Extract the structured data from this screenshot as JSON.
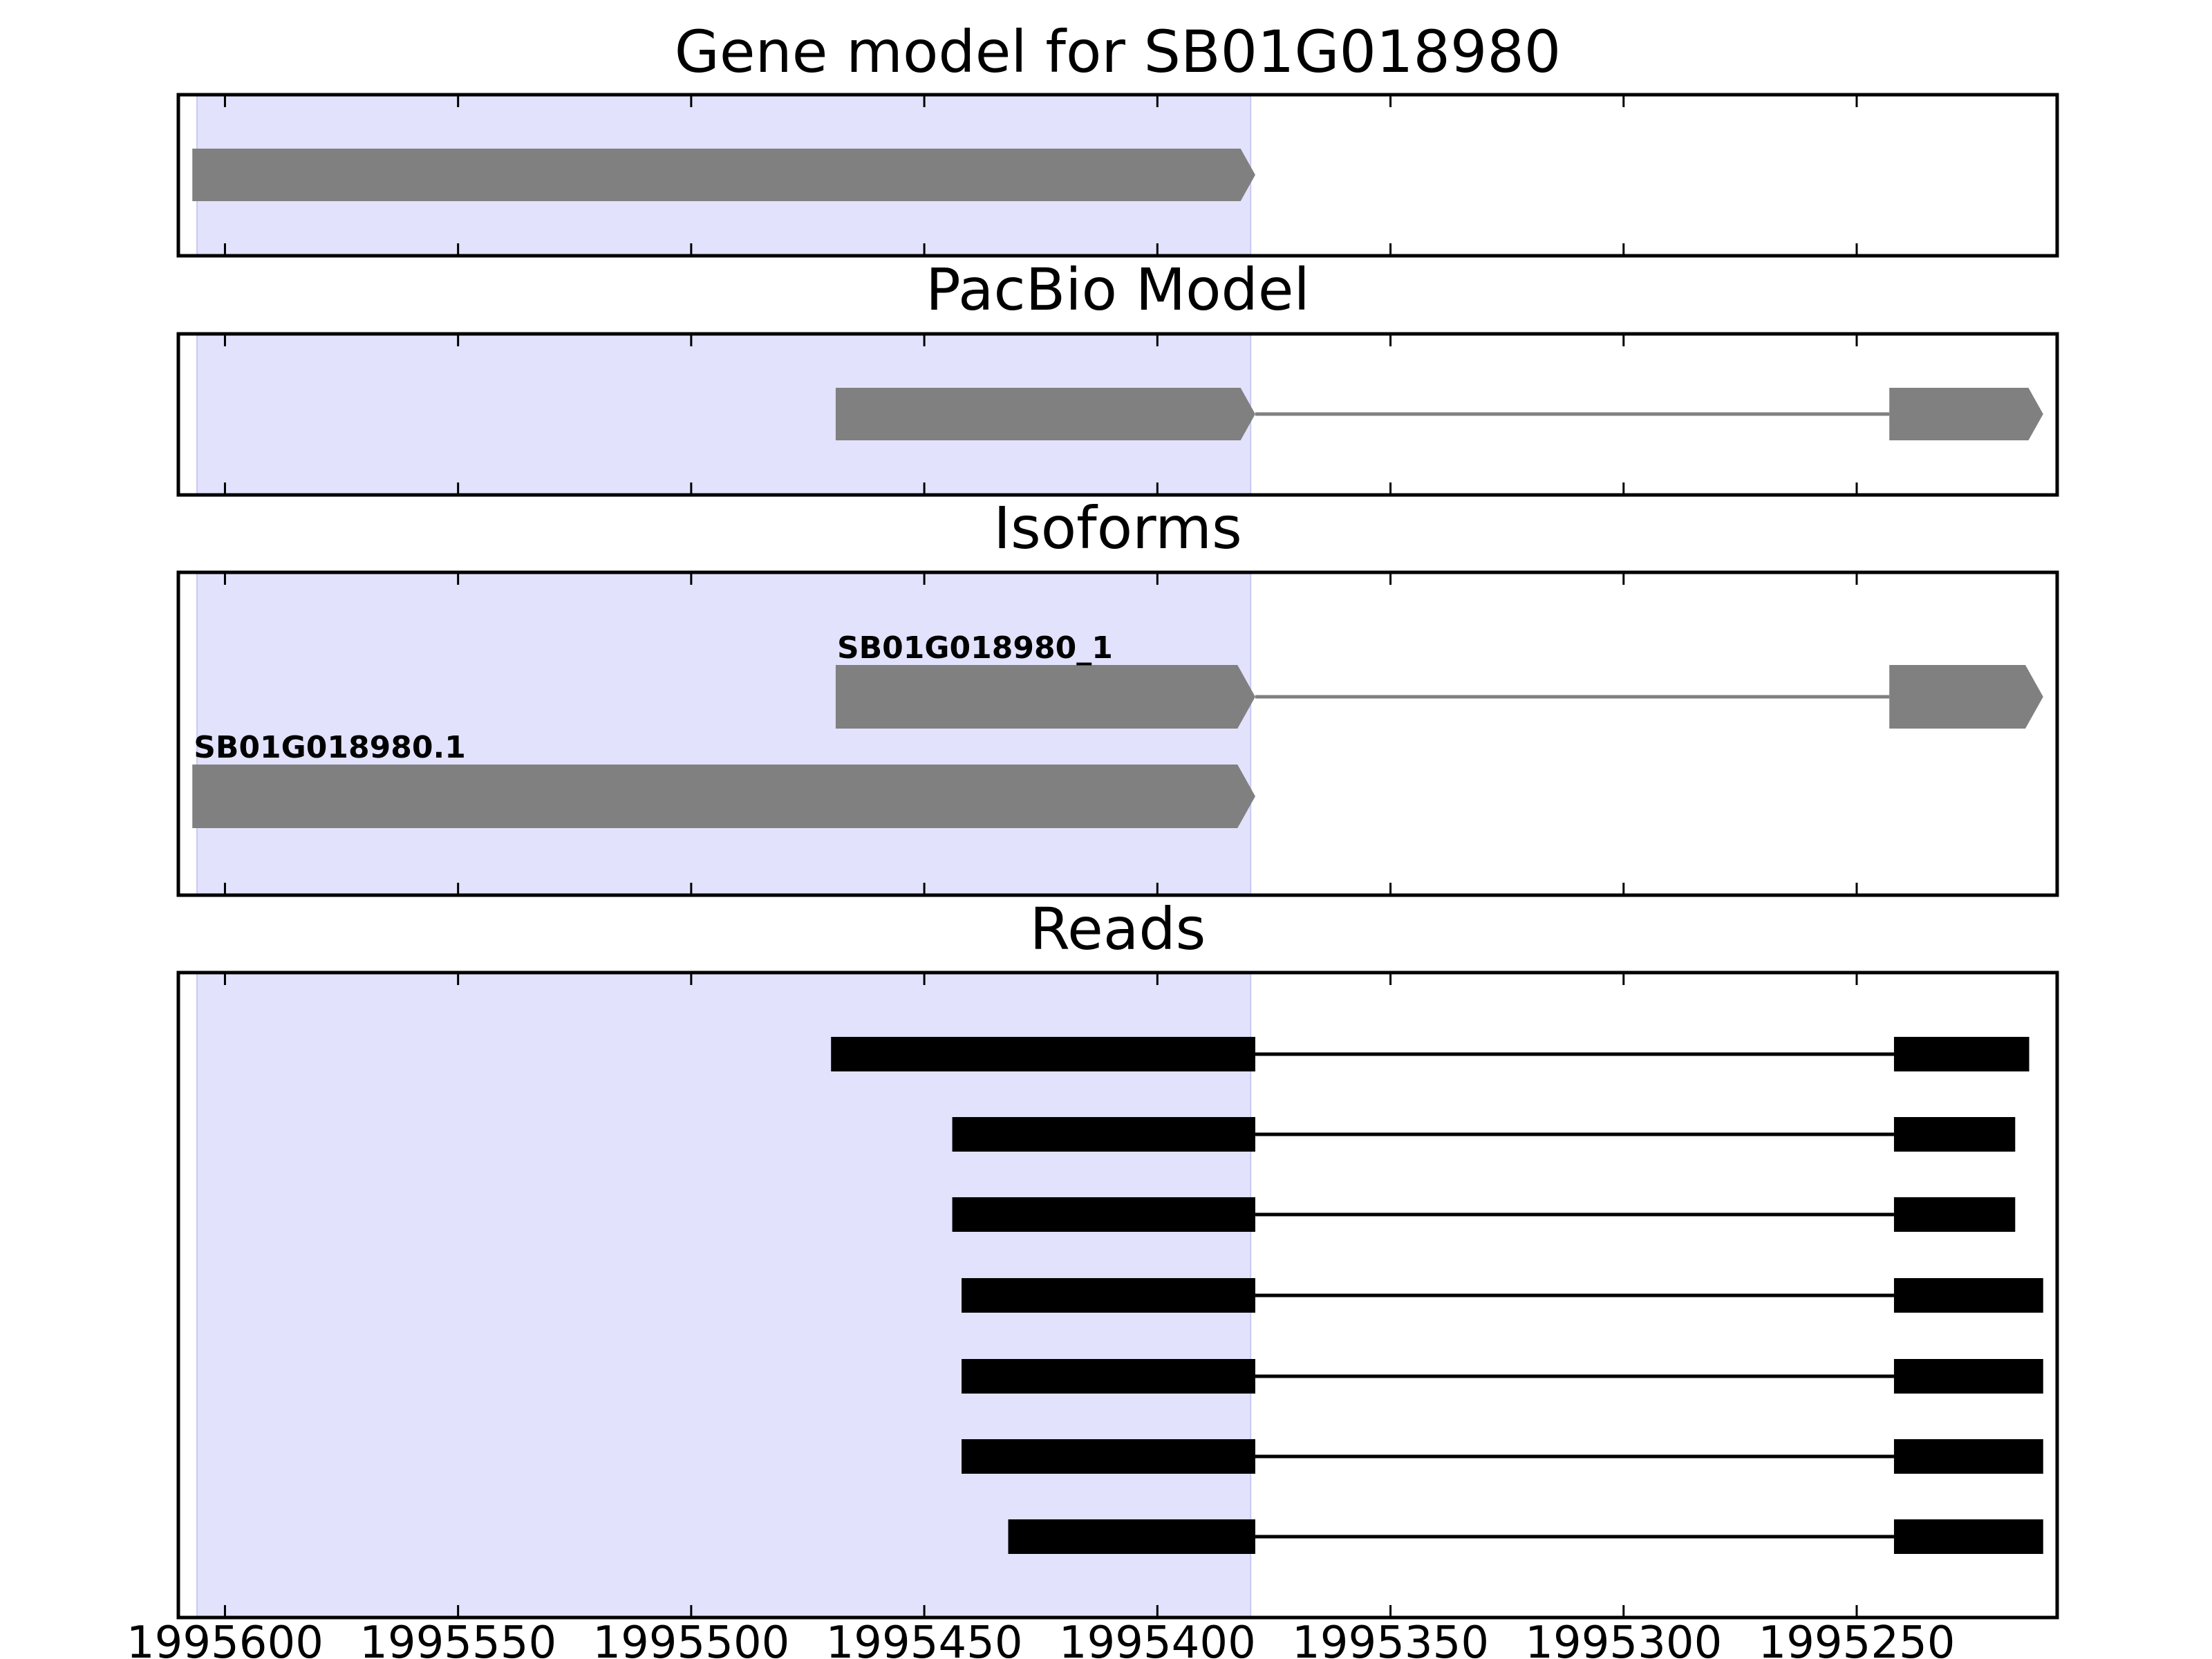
{
  "figure": {
    "panel_titles": [
      "Gene model for SB01G018980",
      "PacBio Model",
      "Isoforms",
      "Reads"
    ]
  },
  "chart_data": {
    "type": "gene_track",
    "xlim": [
      1995610,
      1995207
    ],
    "x_axis_reversed": true,
    "xticks": [
      1995600,
      1995550,
      1995500,
      1995450,
      1995400,
      1995350,
      1995300,
      1995250
    ],
    "xtick_labels": [
      "1995600",
      "1995550",
      "1995500",
      "1995450",
      "1995400",
      "1995350",
      "1995300",
      "1995250"
    ],
    "highlight_region": [
      1995606,
      1995380
    ],
    "colors": {
      "highlight": "#e2e2fc",
      "highlight_edge": "#c8c8f4",
      "model": "#808080",
      "read": "#000000",
      "frame": "#000000"
    },
    "panels": [
      {
        "title": "Gene model for SB01G018980",
        "tracks": [
          {
            "label": "",
            "exons": [
              [
                1995607,
                1995379
              ]
            ],
            "arrow": true
          }
        ]
      },
      {
        "title": "PacBio Model",
        "tracks": [
          {
            "label": "",
            "exons": [
              [
                1995469,
                1995379
              ],
              [
                1995243,
                1995210
              ]
            ],
            "arrow": true
          }
        ]
      },
      {
        "title": "Isoforms",
        "tracks": [
          {
            "label": "SB01G018980_1",
            "exons": [
              [
                1995469,
                1995379
              ],
              [
                1995243,
                1995210
              ]
            ],
            "arrow": true
          },
          {
            "label": "SB01G018980.1",
            "exons": [
              [
                1995607,
                1995379
              ]
            ],
            "arrow": true
          }
        ]
      },
      {
        "title": "Reads",
        "tracks": [
          {
            "label": "",
            "exons": [
              [
                1995470,
                1995379
              ],
              [
                1995242,
                1995213
              ]
            ]
          },
          {
            "label": "",
            "exons": [
              [
                1995444,
                1995379
              ],
              [
                1995242,
                1995216
              ]
            ]
          },
          {
            "label": "",
            "exons": [
              [
                1995444,
                1995379
              ],
              [
                1995242,
                1995216
              ]
            ]
          },
          {
            "label": "",
            "exons": [
              [
                1995442,
                1995379
              ],
              [
                1995242,
                1995210
              ]
            ]
          },
          {
            "label": "",
            "exons": [
              [
                1995442,
                1995379
              ],
              [
                1995242,
                1995210
              ]
            ]
          },
          {
            "label": "",
            "exons": [
              [
                1995442,
                1995379
              ],
              [
                1995242,
                1995210
              ]
            ]
          },
          {
            "label": "",
            "exons": [
              [
                1995432,
                1995379
              ],
              [
                1995242,
                1995210
              ]
            ]
          }
        ]
      }
    ]
  }
}
